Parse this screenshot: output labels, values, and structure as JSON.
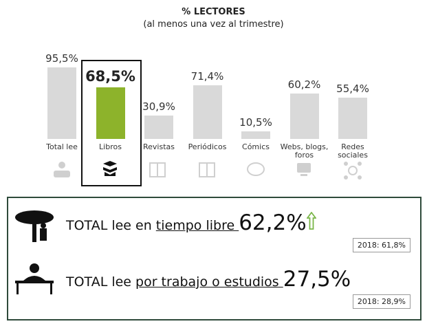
{
  "chart_data": {
    "type": "bar",
    "title": "% LECTORES",
    "subtitle": "(al menos una vez al trimestre)",
    "categories": [
      "Total lee",
      "Libros",
      "Revistas",
      "Periódicos",
      "Cómics",
      "Webs, blogs, foros",
      "Redes sociales"
    ],
    "values": [
      95.5,
      68.5,
      30.9,
      71.4,
      10.5,
      60.2,
      55.4
    ],
    "value_labels": [
      "95,5%",
      "68,5%",
      "30,9%",
      "71,4%",
      "10,5%",
      "60,2%",
      "55,4%"
    ],
    "colors": [
      "#d9d9d9",
      "#8db32b",
      "#d9d9d9",
      "#d9d9d9",
      "#d9d9d9",
      "#d9d9d9",
      "#d9d9d9"
    ]
  },
  "panel": {
    "rows": [
      {
        "prefix": "TOTAL lee en ",
        "underlined": "tiempo libre ",
        "value": "62,2%",
        "previous": "2018: 61,8%",
        "trend_color": "#7ab648"
      },
      {
        "prefix": "TOTAL lee ",
        "underlined": "por trabajo o estudios ",
        "value": "27,5%",
        "previous": "2018: 28,9%"
      }
    ]
  }
}
